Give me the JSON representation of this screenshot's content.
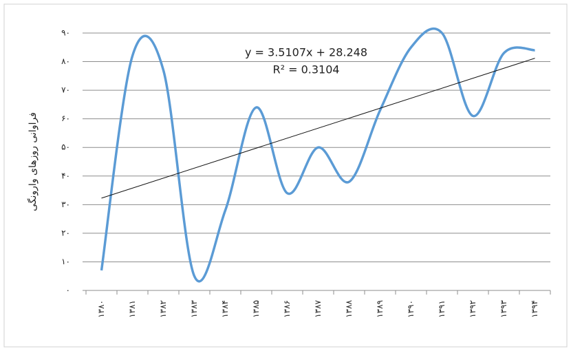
{
  "chart_data": {
    "type": "line",
    "y_label": "فراوانی روزهای وارونگی",
    "annotations": [
      "y = 3.5107x + 28.248",
      "R² = 0.3104"
    ],
    "categories": [
      "۱۳۸۰",
      "۱۳۸۱",
      "۱۳۸۲",
      "۱۳۸۳",
      "۱۳۸۴",
      "۱۳۸۵",
      "۱۳۸۶",
      "۱۳۸۷",
      "۱۳۸۸",
      "۱۳۸۹",
      "۱۳۹۰",
      "۱۳۹۱",
      "۱۳۹۲",
      "۱۳۹۳",
      "۱۳۹۴"
    ],
    "series": [
      {
        "color": "#5b9bd5",
        "values": [
          7,
          82,
          77,
          5,
          28,
          64,
          34,
          50,
          38,
          63,
          85,
          90,
          61,
          83,
          84
        ]
      }
    ],
    "trendline": true,
    "ylim": [
      0,
      90
    ],
    "yticks": [
      {
        "value": 0,
        "label": "۰"
      },
      {
        "value": 10,
        "label": "۱۰"
      },
      {
        "value": 20,
        "label": "۲۰"
      },
      {
        "value": 30,
        "label": "۳۰"
      },
      {
        "value": 40,
        "label": "۴۰"
      },
      {
        "value": 50,
        "label": "۵۰"
      },
      {
        "value": 60,
        "label": "۶۰"
      },
      {
        "value": 70,
        "label": "۷۰"
      },
      {
        "value": 80,
        "label": "۸۰"
      },
      {
        "value": 90,
        "label": "۹۰"
      }
    ],
    "grid": true
  }
}
